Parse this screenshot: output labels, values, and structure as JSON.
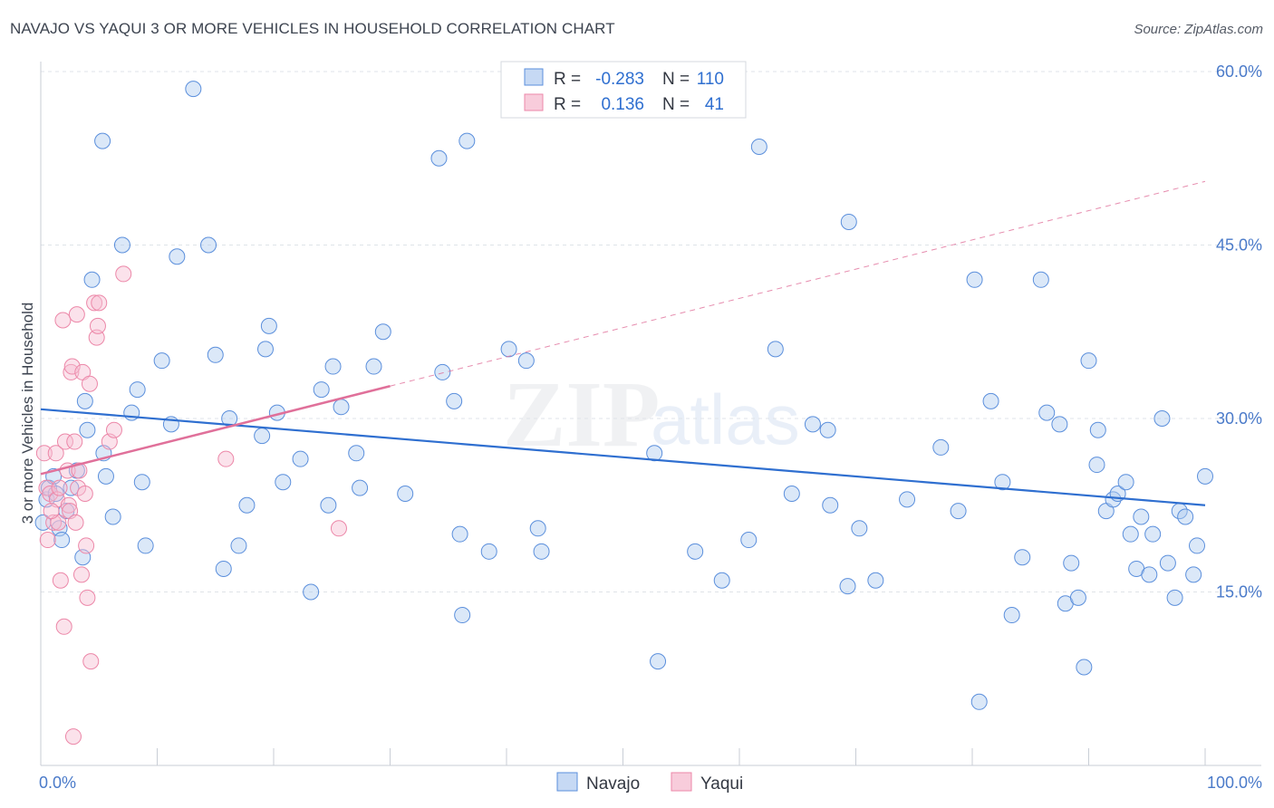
{
  "header": {
    "title": "NAVAJO VS YAQUI 3 OR MORE VEHICLES IN HOUSEHOLD CORRELATION CHART",
    "source": "Source: ZipAtlas.com"
  },
  "watermark": {
    "zip": "ZIP",
    "atlas": "atlas"
  },
  "stats": [
    {
      "r_label": "R =",
      "r_value": "-0.283",
      "n_label": "N =",
      "n_value": "110"
    },
    {
      "r_label": "R =",
      "r_value": "0.136",
      "n_label": "N =",
      "n_value": "41"
    }
  ],
  "chart_data": {
    "type": "scatter",
    "title": "NAVAJO VS YAQUI 3 OR MORE VEHICLES IN HOUSEHOLD CORRELATION CHART",
    "xlabel": "",
    "ylabel": "3 or more Vehicles in Household",
    "xlim": [
      0,
      100
    ],
    "ylim": [
      0,
      60
    ],
    "x_tick_labels": [
      "0.0%",
      "100.0%"
    ],
    "y_ticks": [
      15,
      30,
      45,
      60
    ],
    "y_tick_labels": [
      "15.0%",
      "30.0%",
      "45.0%",
      "60.0%"
    ],
    "grid": true,
    "legend_position": "bottom-center",
    "colors": {
      "Navajo": "#5b8fdc",
      "Yaqui": "#ec87a8",
      "navajo_line": "#2f6fd0",
      "yaqui_line": "#e0709a",
      "tick_text": "#4a7ac9"
    },
    "series": [
      {
        "name": "Navajo",
        "color": "#5b8fdc",
        "trend": {
          "x": [
            0,
            100
          ],
          "y": [
            30.8,
            22.5
          ],
          "style": "solid"
        },
        "points": [
          [
            0.2,
            21
          ],
          [
            0.5,
            23
          ],
          [
            0.7,
            24
          ],
          [
            1.1,
            25
          ],
          [
            1.3,
            23.5
          ],
          [
            1.6,
            20.5
          ],
          [
            1.8,
            19.5
          ],
          [
            2.2,
            22
          ],
          [
            2.6,
            24
          ],
          [
            3.1,
            25.5
          ],
          [
            3.6,
            18
          ],
          [
            3.8,
            31.5
          ],
          [
            4.0,
            29
          ],
          [
            4.4,
            42
          ],
          [
            5.3,
            54
          ],
          [
            5.6,
            25
          ],
          [
            5.4,
            27
          ],
          [
            6.2,
            21.5
          ],
          [
            7.0,
            45
          ],
          [
            7.8,
            30.5
          ],
          [
            8.3,
            32.5
          ],
          [
            8.7,
            24.5
          ],
          [
            9.0,
            19
          ],
          [
            10.4,
            35
          ],
          [
            11.2,
            29.5
          ],
          [
            11.7,
            44
          ],
          [
            13.1,
            58.5
          ],
          [
            14.4,
            45
          ],
          [
            15.0,
            35.5
          ],
          [
            15.7,
            17
          ],
          [
            16.2,
            30
          ],
          [
            17.0,
            19
          ],
          [
            17.7,
            22.5
          ],
          [
            19.0,
            28.5
          ],
          [
            19.3,
            36
          ],
          [
            19.6,
            38
          ],
          [
            20.3,
            30.5
          ],
          [
            20.8,
            24.5
          ],
          [
            22.3,
            26.5
          ],
          [
            23.2,
            15
          ],
          [
            24.1,
            32.5
          ],
          [
            24.7,
            22.5
          ],
          [
            25.1,
            34.5
          ],
          [
            25.8,
            31
          ],
          [
            27.1,
            27
          ],
          [
            27.4,
            24
          ],
          [
            28.6,
            34.5
          ],
          [
            29.4,
            37.5
          ],
          [
            31.3,
            23.5
          ],
          [
            34.2,
            52.5
          ],
          [
            34.5,
            34
          ],
          [
            35.5,
            31.5
          ],
          [
            36.0,
            20
          ],
          [
            36.2,
            13
          ],
          [
            36.6,
            54
          ],
          [
            38.5,
            18.5
          ],
          [
            40.2,
            36
          ],
          [
            41.7,
            35
          ],
          [
            42.7,
            20.5
          ],
          [
            43.0,
            18.5
          ],
          [
            52.7,
            27
          ],
          [
            53.0,
            9
          ],
          [
            56.2,
            18.5
          ],
          [
            58.5,
            16
          ],
          [
            60.8,
            19.5
          ],
          [
            61.7,
            53.5
          ],
          [
            63.1,
            36
          ],
          [
            64.5,
            23.5
          ],
          [
            66.3,
            29.5
          ],
          [
            67.6,
            29
          ],
          [
            67.8,
            22.5
          ],
          [
            69.3,
            15.5
          ],
          [
            69.4,
            47
          ],
          [
            70.3,
            20.5
          ],
          [
            71.7,
            16
          ],
          [
            74.4,
            23
          ],
          [
            77.3,
            27.5
          ],
          [
            78.8,
            22
          ],
          [
            80.2,
            42
          ],
          [
            80.6,
            5.5
          ],
          [
            81.6,
            31.5
          ],
          [
            82.6,
            24.5
          ],
          [
            83.4,
            13
          ],
          [
            84.3,
            18
          ],
          [
            85.9,
            42
          ],
          [
            86.4,
            30.5
          ],
          [
            87.5,
            29.5
          ],
          [
            88.0,
            14
          ],
          [
            88.5,
            17.5
          ],
          [
            89.1,
            14.5
          ],
          [
            89.6,
            8.5
          ],
          [
            90.0,
            35
          ],
          [
            90.7,
            26
          ],
          [
            90.8,
            29
          ],
          [
            91.5,
            22
          ],
          [
            92.1,
            23
          ],
          [
            92.5,
            23.5
          ],
          [
            93.2,
            24.5
          ],
          [
            93.6,
            20
          ],
          [
            94.1,
            17
          ],
          [
            94.5,
            21.5
          ],
          [
            95.2,
            16.5
          ],
          [
            95.5,
            20
          ],
          [
            96.3,
            30
          ],
          [
            96.8,
            17.5
          ],
          [
            97.4,
            14.5
          ],
          [
            97.8,
            22
          ],
          [
            98.3,
            21.5
          ],
          [
            99.0,
            16.5
          ],
          [
            99.3,
            19
          ],
          [
            100,
            25
          ]
        ]
      },
      {
        "name": "Yaqui",
        "color": "#ec87a8",
        "trend": {
          "x": [
            0,
            30
          ],
          "y": [
            25.2,
            32.8
          ],
          "dashed_extension": {
            "x": [
              30,
              100
            ],
            "y": [
              32.8,
              50.5
            ]
          }
        },
        "points": [
          [
            0.3,
            27
          ],
          [
            0.5,
            24
          ],
          [
            0.8,
            23.5
          ],
          [
            1.1,
            21
          ],
          [
            1.3,
            27
          ],
          [
            1.4,
            23
          ],
          [
            1.5,
            21
          ],
          [
            1.7,
            16
          ],
          [
            1.9,
            38.5
          ],
          [
            2.0,
            12
          ],
          [
            2.1,
            28
          ],
          [
            2.3,
            25.5
          ],
          [
            2.4,
            22.5
          ],
          [
            2.6,
            34
          ],
          [
            2.7,
            34.5
          ],
          [
            2.9,
            28
          ],
          [
            3.1,
            39
          ],
          [
            3.2,
            24
          ],
          [
            3.3,
            25.5
          ],
          [
            3.5,
            16.5
          ],
          [
            3.6,
            34
          ],
          [
            3.9,
            19
          ],
          [
            4.0,
            14.5
          ],
          [
            4.2,
            33
          ],
          [
            4.3,
            9
          ],
          [
            4.6,
            40
          ],
          [
            4.8,
            37
          ],
          [
            4.9,
            38
          ],
          [
            5.0,
            40
          ],
          [
            5.9,
            28
          ],
          [
            6.3,
            29
          ],
          [
            7.1,
            42.5
          ],
          [
            3.8,
            23.5
          ],
          [
            0.9,
            22
          ],
          [
            1.6,
            24
          ],
          [
            2.8,
            2.5
          ],
          [
            2.5,
            22
          ],
          [
            0.6,
            19.5
          ],
          [
            3.0,
            21
          ],
          [
            15.9,
            26.5
          ],
          [
            25.6,
            20.5
          ]
        ]
      }
    ]
  },
  "legend": {
    "items": [
      "Navajo",
      "Yaqui"
    ]
  }
}
